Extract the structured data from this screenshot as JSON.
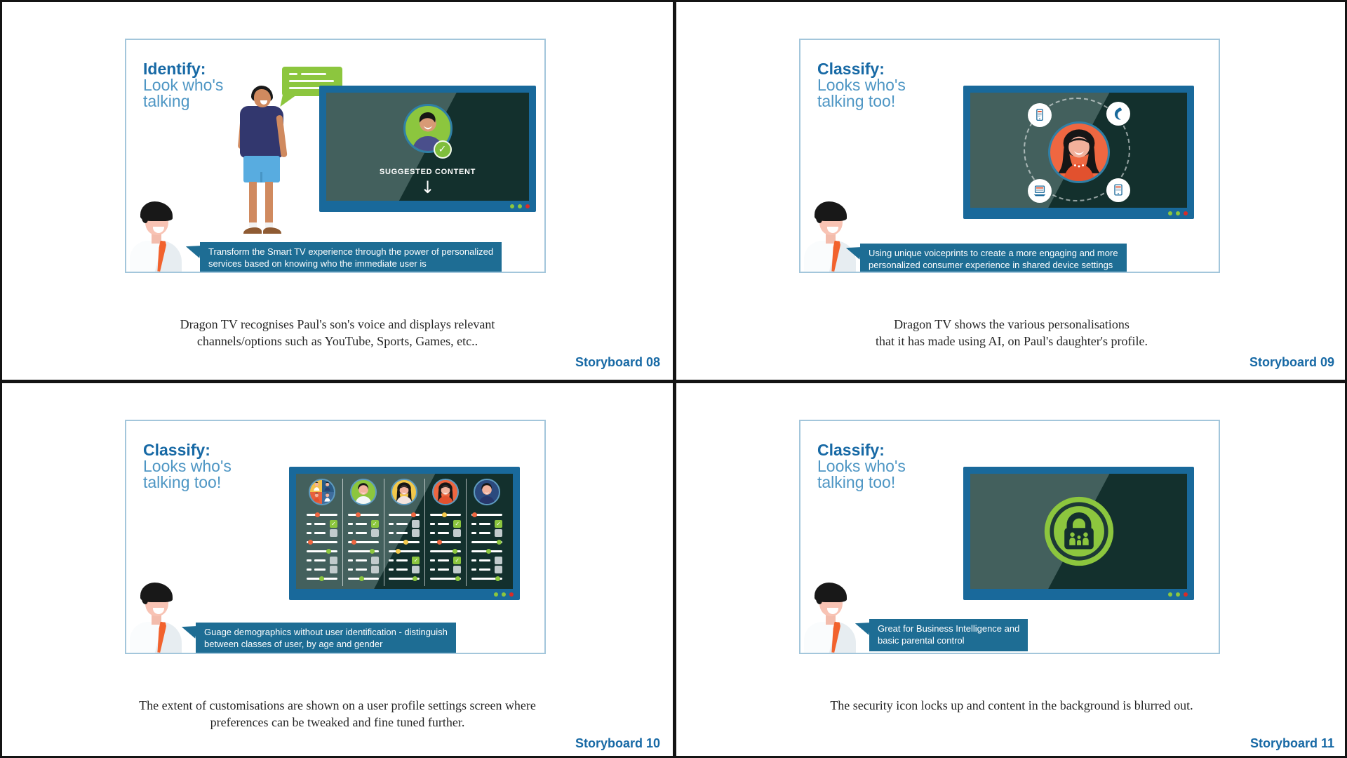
{
  "colors": {
    "title_blue_bold": "#1769A5",
    "title_blue_light": "#4E96C4",
    "speech_bubble_teal": "#1E6D94",
    "storyboard_number_blue": "#1769A5",
    "accent_green": "#8CC63E",
    "accent_orange": "#EE6640",
    "accent_yellow": "#F2C84B",
    "accent_red": "#D92B27",
    "tv_frame_blue": "#19699B",
    "tv_screen_dark": "#13302D",
    "tv_screen_light": "#43605D",
    "tie_orange": "#F2622D"
  },
  "quadrants": [
    {
      "storyboard_label": "Storyboard 08",
      "title_bold": "Identify:",
      "title_rest": "Look who's\ntalking",
      "speech_bubble": "Transform the Smart TV experience through the power of personalized\nservices based on knowing who the immediate user is",
      "caption": "Dragon TV recognises Paul's son's voice and displays relevant\nchannels/options such as YouTube, Sports, Games, etc..",
      "tv": {
        "label": "SUGGESTED CONTENT",
        "arrow": "↓"
      }
    },
    {
      "storyboard_label": "Storyboard 09",
      "title_bold": "Classify:",
      "title_rest": "Looks who's\ntalking too!",
      "speech_bubble": "Using unique voiceprints to create a more engaging and more\npersonalized consumer experience in shared device settings",
      "caption": "Dragon TV shows the various personalisations\nthat it has made using AI, on Paul's daughter's profile.",
      "tv": {
        "device_icons": [
          "smartphone",
          "nuance-logo",
          "laptop",
          "tablet"
        ]
      }
    },
    {
      "storyboard_label": "Storyboard 10",
      "title_bold": "Classify:",
      "title_rest": "Looks who's\ntalking too!",
      "speech_bubble": "Guage demographics without user identification - distinguish\nbetween classes of user, by age and gender",
      "caption": "The extent of customisations are shown on a user profile settings screen where\npreferences can be tweaked and fine tuned further."
    },
    {
      "storyboard_label": "Storyboard 11",
      "title_bold": "Classify:",
      "title_rest": "Looks who's\ntalking too!",
      "speech_bubble": "Great for Business Intelligence and\nbasic parental control",
      "caption": "The security icon locks up and content in the background is blurred out."
    }
  ],
  "settings_board": {
    "columns": [
      {
        "avatar": {
          "kind": "group",
          "colors": [
            "#2A5B85",
            "#3E6C9C",
            "#E8603C",
            "#F2C14B"
          ]
        },
        "rows": [
          {
            "type": "slider",
            "color": "orange",
            "pos": 0.35
          },
          {
            "type": "checkbox",
            "checked": true
          },
          {
            "type": "checkbox",
            "checked": false
          },
          {
            "type": "slider",
            "color": "orange",
            "pos": 0.12
          },
          {
            "type": "slider",
            "color": "green",
            "pos": 0.72
          },
          {
            "type": "checkbox",
            "checked": false
          },
          {
            "type": "checkbox",
            "checked": false
          },
          {
            "type": "slider",
            "color": "green",
            "pos": 0.5
          }
        ]
      },
      {
        "avatar": {
          "kind": "man",
          "bg": "#8CC63E",
          "shirt": "#F4F7F9"
        },
        "rows": [
          {
            "type": "slider",
            "color": "orange",
            "pos": 0.33
          },
          {
            "type": "checkbox",
            "checked": true
          },
          {
            "type": "checkbox",
            "checked": false
          },
          {
            "type": "slider",
            "color": "orange",
            "pos": 0.2
          },
          {
            "type": "slider",
            "color": "green",
            "pos": 0.78
          },
          {
            "type": "checkbox",
            "checked": false
          },
          {
            "type": "checkbox",
            "checked": false
          },
          {
            "type": "slider",
            "color": "green",
            "pos": 0.45
          }
        ]
      },
      {
        "avatar": {
          "kind": "woman",
          "bg": "#F2C84B",
          "shirt": "#F3E4DE"
        },
        "rows": [
          {
            "type": "slider",
            "color": "orange",
            "pos": 0.8
          },
          {
            "type": "checkbox",
            "checked": false
          },
          {
            "type": "checkbox",
            "checked": false
          },
          {
            "type": "slider",
            "color": "yellow",
            "pos": 0.55
          },
          {
            "type": "slider",
            "color": "yellow",
            "pos": 0.3
          },
          {
            "type": "checkbox",
            "checked": true
          },
          {
            "type": "checkbox",
            "checked": false
          },
          {
            "type": "slider",
            "color": "green",
            "pos": 0.85
          }
        ]
      },
      {
        "avatar": {
          "kind": "woman",
          "bg": "#EE6640",
          "shirt": "#E2512E"
        },
        "rows": [
          {
            "type": "slider",
            "color": "yellow",
            "pos": 0.45
          },
          {
            "type": "checkbox",
            "checked": true
          },
          {
            "type": "checkbox",
            "checked": false
          },
          {
            "type": "slider",
            "color": "orange",
            "pos": 0.3
          },
          {
            "type": "slider",
            "color": "green",
            "pos": 0.8
          },
          {
            "type": "checkbox",
            "checked": true
          },
          {
            "type": "checkbox",
            "checked": false
          },
          {
            "type": "slider",
            "color": "green",
            "pos": 0.9
          }
        ]
      },
      {
        "avatar": {
          "kind": "man",
          "bg": "#2B4A7E",
          "shirt": "#27376B"
        },
        "rows": [
          {
            "type": "slider",
            "color": "orange",
            "pos": 0.1
          },
          {
            "type": "checkbox",
            "checked": true
          },
          {
            "type": "checkbox",
            "checked": false
          },
          {
            "type": "slider",
            "color": "green",
            "pos": 0.9
          },
          {
            "type": "slider",
            "color": "green",
            "pos": 0.55
          },
          {
            "type": "checkbox",
            "checked": false
          },
          {
            "type": "checkbox",
            "checked": false
          },
          {
            "type": "slider",
            "color": "green",
            "pos": 0.85
          }
        ]
      }
    ]
  }
}
